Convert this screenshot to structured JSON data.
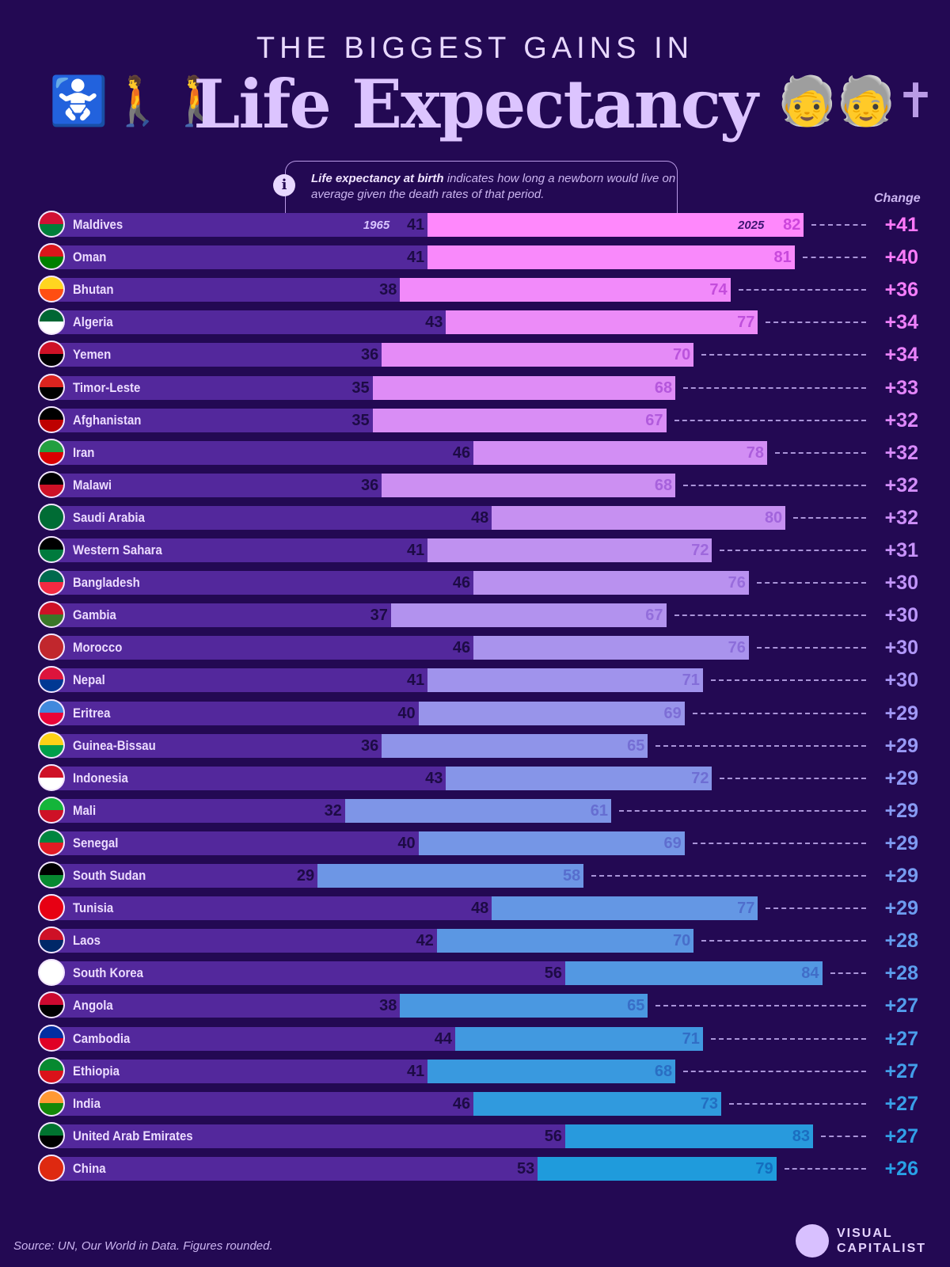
{
  "header": {
    "supertitle": "THE BIGGEST GAINS IN",
    "title": "Life Expectancy",
    "info_bold": "Life expectancy at birth",
    "info_text": " indicates how long a newborn would live on average given the death rates of that period.",
    "change_header": "Change"
  },
  "footer": {
    "source": "Source: UN, Our World in Data. Figures rounded.",
    "logo": "VISUAL CAPITALIST"
  },
  "colors": {
    "background": "#230953",
    "bar_1965": "#53289c",
    "top": "#ff88fc",
    "middle": "#b592ee",
    "bottom": "#1f9bdc"
  },
  "chart_data": {
    "type": "bar",
    "subtype": "stacked-range",
    "year_labels": [
      "1965",
      "2025"
    ],
    "categories": [
      "Maldives",
      "Oman",
      "Bhutan",
      "Algeria",
      "Yemen",
      "Timor-Leste",
      "Afghanistan",
      "Iran",
      "Malawi",
      "Saudi Arabia",
      "Western Sahara",
      "Bangladesh",
      "Gambia",
      "Morocco",
      "Nepal",
      "Eritrea",
      "Guinea-Bissau",
      "Indonesia",
      "Mali",
      "Senegal",
      "South Sudan",
      "Tunisia",
      "Laos",
      "South Korea",
      "Angola",
      "Cambodia",
      "Ethiopia",
      "India",
      "United Arab Emirates",
      "China"
    ],
    "series": [
      {
        "name": "1965",
        "values": [
          41,
          41,
          38,
          43,
          36,
          35,
          35,
          46,
          36,
          48,
          41,
          46,
          37,
          46,
          41,
          40,
          36,
          43,
          32,
          40,
          29,
          48,
          42,
          56,
          38,
          44,
          41,
          46,
          56,
          53
        ]
      },
      {
        "name": "2025",
        "values": [
          82,
          81,
          74,
          77,
          70,
          68,
          67,
          78,
          68,
          80,
          72,
          76,
          67,
          76,
          71,
          69,
          65,
          72,
          61,
          69,
          58,
          77,
          70,
          84,
          65,
          71,
          68,
          73,
          83,
          79
        ]
      }
    ],
    "change": [
      "+41",
      "+40",
      "+36",
      "+34",
      "+34",
      "+33",
      "+32",
      "+32",
      "+32",
      "+32",
      "+31",
      "+30",
      "+30",
      "+30",
      "+30",
      "+29",
      "+29",
      "+29",
      "+29",
      "+29",
      "+29",
      "+29",
      "+28",
      "+28",
      "+27",
      "+27",
      "+27",
      "+27",
      "+27",
      "+26"
    ],
    "flag_colors": [
      [
        "#d21034",
        "#007e3a"
      ],
      [
        "#db161b",
        "#008000"
      ],
      [
        "#ffd520",
        "#ff4e12"
      ],
      [
        "#006633",
        "#ffffff"
      ],
      [
        "#ce1126",
        "#000000"
      ],
      [
        "#dc241f",
        "#000000"
      ],
      [
        "#000000",
        "#be0000"
      ],
      [
        "#239f40",
        "#da0000"
      ],
      [
        "#000000",
        "#ce1126"
      ],
      [
        "#006c35",
        "#006c35"
      ],
      [
        "#000000",
        "#007a3d"
      ],
      [
        "#006a4e",
        "#f42a41"
      ],
      [
        "#ce1126",
        "#3a7728"
      ],
      [
        "#c1272d",
        "#c1272d"
      ],
      [
        "#dc143c",
        "#003893"
      ],
      [
        "#4189dd",
        "#ea0437"
      ],
      [
        "#fcd116",
        "#009e49"
      ],
      [
        "#ce1126",
        "#ffffff"
      ],
      [
        "#14b53a",
        "#ce1126"
      ],
      [
        "#00853f",
        "#e31b23"
      ],
      [
        "#000000",
        "#078930"
      ],
      [
        "#e70013",
        "#e70013"
      ],
      [
        "#ce1126",
        "#002868"
      ],
      [
        "#ffffff",
        "#ffffff"
      ],
      [
        "#cc092f",
        "#000000"
      ],
      [
        "#032ea1",
        "#e00025"
      ],
      [
        "#078930",
        "#da121a"
      ],
      [
        "#ff9933",
        "#138808"
      ],
      [
        "#00732f",
        "#000000"
      ],
      [
        "#de2910",
        "#de2910"
      ]
    ],
    "xlim": [
      0,
      90
    ],
    "grid": false
  }
}
